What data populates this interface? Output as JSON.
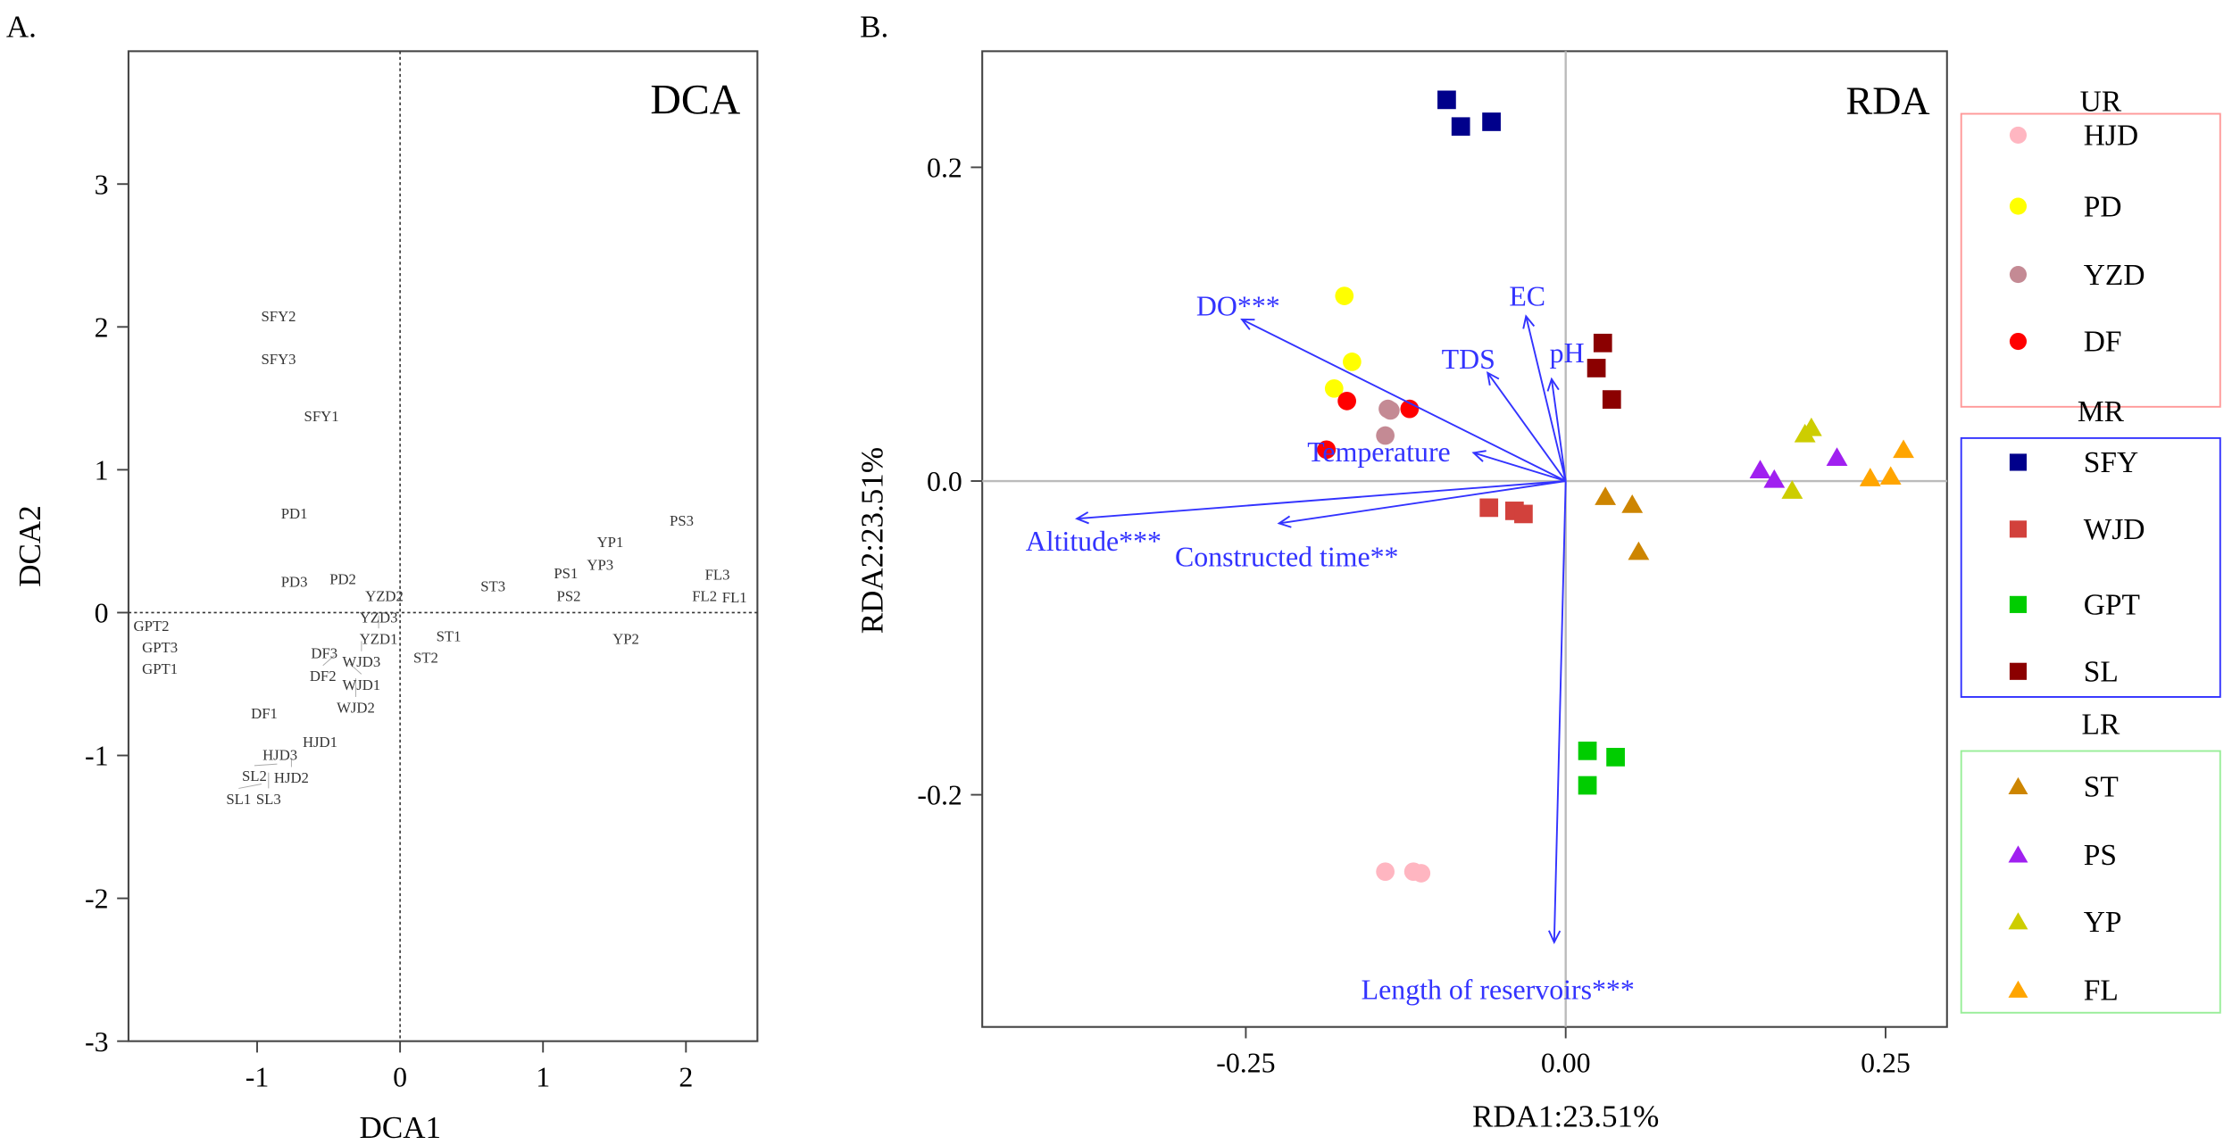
{
  "chart_data": [
    {
      "type": "scatter",
      "panel_label": "A.",
      "title": "DCA",
      "xlabel": "DCA1",
      "ylabel": "DCA2",
      "xlim": [
        -1.9,
        2.5
      ],
      "ylim": [
        -3.0,
        3.93
      ],
      "xticks": [
        -1,
        0,
        1,
        2
      ],
      "xtick_labels": [
        "-1",
        "0",
        "1",
        "2"
      ],
      "yticks": [
        -3,
        -2,
        -1,
        0,
        1,
        2,
        3
      ],
      "ytick_labels": [
        "-3",
        "-2",
        "-1",
        "0",
        "1",
        "2",
        "3"
      ],
      "reference_lines": "dotted at x=0 and y=0",
      "points": [
        {
          "label": "SFY2",
          "x": -0.85,
          "y": 2.08
        },
        {
          "label": "SFY3",
          "x": -0.85,
          "y": 1.78
        },
        {
          "label": "SFY1",
          "x": -0.55,
          "y": 1.38
        },
        {
          "label": "PD1",
          "x": -0.74,
          "y": 0.7
        },
        {
          "label": "PD3",
          "x": -0.74,
          "y": 0.22
        },
        {
          "label": "PD2",
          "x": -0.4,
          "y": 0.24
        },
        {
          "label": "YZD2",
          "x": -0.11,
          "y": 0.12
        },
        {
          "label": "YZD3",
          "x": -0.15,
          "y": 0.05
        },
        {
          "label": "YZD1",
          "x": -0.15,
          "y": -0.02
        },
        {
          "label": "ST3",
          "x": 0.65,
          "y": 0.19
        },
        {
          "label": "PS1",
          "x": 1.2,
          "y": 0.28
        },
        {
          "label": "PS2",
          "x": 1.18,
          "y": 0.2
        },
        {
          "label": "YP1",
          "x": 1.47,
          "y": 0.5
        },
        {
          "label": "YP3",
          "x": 1.4,
          "y": 0.42
        },
        {
          "label": "PS3",
          "x": 1.97,
          "y": 0.65
        },
        {
          "label": "FL3",
          "x": 2.22,
          "y": 0.27
        },
        {
          "label": "FL1",
          "x": 2.34,
          "y": 0.15
        },
        {
          "label": "FL2",
          "x": 2.21,
          "y": 0.12
        },
        {
          "label": "YP2",
          "x": 1.58,
          "y": -0.18
        },
        {
          "label": "ST1",
          "x": 0.34,
          "y": -0.16
        },
        {
          "label": "ST2",
          "x": 0.18,
          "y": -0.29
        },
        {
          "label": "GPT2",
          "x": -1.74,
          "y": -0.09
        },
        {
          "label": "GPT3",
          "x": -1.68,
          "y": -0.24
        },
        {
          "label": "GPT1",
          "x": -1.68,
          "y": -0.29
        },
        {
          "label": "WJD3",
          "x": -0.27,
          "y": -0.2
        },
        {
          "label": "DF3",
          "x": -0.49,
          "y": -0.28
        },
        {
          "label": "DF2",
          "x": -0.46,
          "y": -0.3
        },
        {
          "label": "WJD1",
          "x": -0.35,
          "y": -0.36
        },
        {
          "label": "WJD2",
          "x": -0.31,
          "y": -0.46
        },
        {
          "label": "DF1",
          "x": -0.95,
          "y": -0.7
        },
        {
          "label": "HJD1",
          "x": -0.56,
          "y": -0.9
        },
        {
          "label": "HJD3",
          "x": -0.84,
          "y": -0.99
        },
        {
          "label": "HJD2",
          "x": -0.76,
          "y": -1.03
        },
        {
          "label": "SL2",
          "x": -0.86,
          "y": -1.06
        },
        {
          "label": "SL3",
          "x": -0.92,
          "y": -1.12
        },
        {
          "label": "SL1",
          "x": -0.97,
          "y": -1.2
        }
      ]
    },
    {
      "type": "scatter",
      "panel_label": "B.",
      "title": "RDA",
      "xlabel": "RDA1:23.51%",
      "ylabel": "RDA2:23.51%",
      "xlim": [
        -0.456,
        0.298
      ],
      "ylim": [
        -0.348,
        0.274
      ],
      "xticks": [
        -0.25,
        0,
        0.25
      ],
      "xtick_labels": [
        "-0.25",
        "0.00",
        "0.25"
      ],
      "yticks": [
        -0.2,
        0,
        0.2
      ],
      "ytick_labels": [
        "-0.2",
        "0.0",
        "0.2"
      ],
      "reference_lines": "solid grey at x=0 and y=0",
      "arrow_color": "#3333FF",
      "series": [
        {
          "name": "HJD",
          "group": "UR",
          "shape": "circle",
          "color": "#FFB6C1",
          "points": [
            [
              -0.141,
              -0.249
            ],
            [
              -0.119,
              -0.249
            ],
            [
              -0.113,
              -0.25
            ]
          ]
        },
        {
          "name": "PD",
          "group": "UR",
          "shape": "circle",
          "color": "#FFFF00",
          "points": [
            [
              -0.173,
              0.118
            ],
            [
              -0.167,
              0.076
            ],
            [
              -0.181,
              0.059
            ]
          ]
        },
        {
          "name": "YZD",
          "group": "UR",
          "shape": "circle",
          "color": "#C48A94",
          "points": [
            [
              -0.139,
              0.046
            ],
            [
              -0.141,
              0.029
            ],
            [
              -0.137,
              0.045
            ]
          ]
        },
        {
          "name": "DF",
          "group": "UR",
          "shape": "circle",
          "color": "#FF0000",
          "points": [
            [
              -0.171,
              0.051
            ],
            [
              -0.122,
              0.046
            ],
            [
              -0.187,
              0.02
            ]
          ]
        },
        {
          "name": "SFY",
          "group": "MR",
          "shape": "square",
          "color": "#00008B",
          "points": [
            [
              -0.093,
              0.243
            ],
            [
              -0.082,
              0.226
            ],
            [
              -0.058,
              0.229
            ]
          ]
        },
        {
          "name": "WJD",
          "group": "MR",
          "shape": "square",
          "color": "#D2413C",
          "points": [
            [
              -0.06,
              -0.017
            ],
            [
              -0.04,
              -0.019
            ],
            [
              -0.033,
              -0.021
            ]
          ]
        },
        {
          "name": "GPT",
          "group": "MR",
          "shape": "square",
          "color": "#00CD00",
          "points": [
            [
              0.017,
              -0.172
            ],
            [
              0.039,
              -0.176
            ],
            [
              0.017,
              -0.194
            ]
          ]
        },
        {
          "name": "SL",
          "group": "MR",
          "shape": "square",
          "color": "#8B0000",
          "points": [
            [
              0.029,
              0.088
            ],
            [
              0.024,
              0.072
            ],
            [
              0.036,
              0.052
            ]
          ]
        },
        {
          "name": "ST",
          "group": "LR",
          "shape": "triangle",
          "color": "#CD8500",
          "points": [
            [
              0.031,
              -0.01
            ],
            [
              0.052,
              -0.015
            ],
            [
              0.057,
              -0.045
            ]
          ]
        },
        {
          "name": "PS",
          "group": "LR",
          "shape": "triangle",
          "color": "#A020F0",
          "points": [
            [
              0.152,
              0.007
            ],
            [
              0.163,
              0.001
            ],
            [
              0.212,
              0.015
            ]
          ]
        },
        {
          "name": "YP",
          "group": "LR",
          "shape": "triangle",
          "color": "#CDCD00",
          "points": [
            [
              0.177,
              -0.006
            ],
            [
              0.187,
              0.03
            ],
            [
              0.192,
              0.034
            ]
          ]
        },
        {
          "name": "FL",
          "group": "LR",
          "shape": "triangle",
          "color": "#FFA500",
          "points": [
            [
              0.238,
              0.002
            ],
            [
              0.254,
              0.003
            ],
            [
              0.264,
              0.02
            ]
          ]
        }
      ],
      "arrows": [
        {
          "label": "DO***",
          "x": -0.253,
          "y": 0.103,
          "label_x": -0.256,
          "label_y": 0.112
        },
        {
          "label": "EC",
          "x": -0.031,
          "y": 0.105,
          "label_x": -0.03,
          "label_y": 0.118
        },
        {
          "label": "TDS",
          "x": -0.061,
          "y": 0.069,
          "label_x": -0.076,
          "label_y": 0.078
        },
        {
          "label": "pH",
          "x": -0.011,
          "y": 0.065,
          "label_x": 0.001,
          "label_y": 0.082
        },
        {
          "label": "Temperature",
          "x": -0.072,
          "y": 0.018,
          "label_x": -0.146,
          "label_y": 0.019
        },
        {
          "label": "Altitude***",
          "x": -0.382,
          "y": -0.024,
          "label_x": -0.369,
          "label_y": -0.038
        },
        {
          "label": "Constructed time**",
          "x": -0.224,
          "y": -0.027,
          "label_x": -0.218,
          "label_y": -0.048
        },
        {
          "label": "Length of reservoirs***",
          "x": -0.009,
          "y": -0.294,
          "label_x": -0.053,
          "label_y": -0.324
        }
      ],
      "legend": {
        "placement": "right",
        "groups": [
          {
            "name": "UR",
            "border_color": "#FF9999",
            "items": [
              "HJD",
              "PD",
              "YZD",
              "DF"
            ]
          },
          {
            "name": "MR",
            "border_color": "#3333FF",
            "items": [
              "SFY",
              "WJD",
              "GPT",
              "SL"
            ]
          },
          {
            "name": "LR",
            "border_color": "#99EE99",
            "items": [
              "ST",
              "PS",
              "YP",
              "FL"
            ]
          }
        ]
      }
    }
  ]
}
